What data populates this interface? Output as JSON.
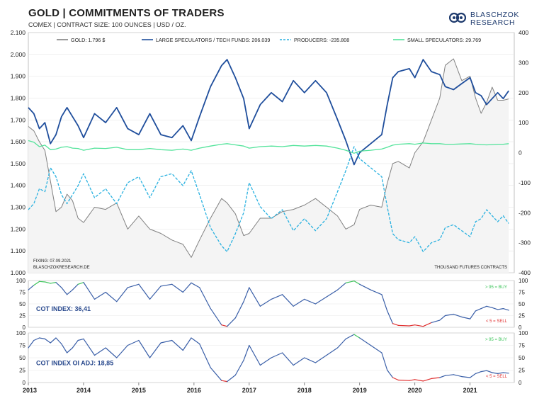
{
  "header": {
    "title": "GOLD | COMMITMENTS OF TRADERS",
    "subtitle": "COMEX | CONTRACT SIZE: 100 OUNCES | USD / OZ.",
    "logo_line1": "BLASCHZOK",
    "logo_line2": "RESEARCH"
  },
  "colors": {
    "gold": "#808080",
    "large_specs": "#1f4e9c",
    "producers": "#29b1e0",
    "small_specs": "#52e39a",
    "cot_line": "#3a5fa8",
    "buy_zone": "#3cc45a",
    "sell_zone": "#e03030"
  },
  "chart_data": [
    {
      "type": "line",
      "legend": [
        "GOLD: 1.796 $",
        "LARGE SPECULATORS / TECH FUNDS: 206.039",
        "PRODUCERS: -235.808",
        "SMALL SPECULATORS: 29.769"
      ],
      "ylim_left": [
        1000,
        2100
      ],
      "yticks_left": [
        "2.100",
        "2.000",
        "1.900",
        "1.800",
        "1.700",
        "1.600",
        "1.500",
        "1.400",
        "1.300",
        "1.200",
        "1.100",
        "1.000"
      ],
      "ylim_right": [
        -400,
        400
      ],
      "yticks_right": [
        "400",
        "300",
        "200",
        "100",
        "0",
        "-100",
        "-200",
        "-300",
        "-400"
      ],
      "xlim": [
        2013.0,
        2021.8
      ],
      "xticks": [
        "2013",
        "2014",
        "2015",
        "2016",
        "2017",
        "2018",
        "2019",
        "2020",
        "2021"
      ],
      "annotation_left": [
        "FIXING: 07.09.2021",
        "BLASCHZOKRESEARCH.DE"
      ],
      "annotation_right": "THOUSAND FUTURES CONTRACTS",
      "series": [
        {
          "name": "GOLD",
          "axis": "left",
          "x": [
            2013.0,
            2013.1,
            2013.2,
            2013.3,
            2013.4,
            2013.5,
            2013.6,
            2013.7,
            2013.8,
            2013.9,
            2014.0,
            2014.2,
            2014.4,
            2014.6,
            2014.8,
            2015.0,
            2015.2,
            2015.4,
            2015.6,
            2015.8,
            2015.95,
            2016.1,
            2016.3,
            2016.5,
            2016.6,
            2016.75,
            2016.9,
            2017.0,
            2017.2,
            2017.4,
            2017.6,
            2017.8,
            2018.0,
            2018.2,
            2018.4,
            2018.6,
            2018.75,
            2018.9,
            2019.0,
            2019.2,
            2019.4,
            2019.5,
            2019.6,
            2019.7,
            2019.9,
            2020.0,
            2020.15,
            2020.3,
            2020.45,
            2020.55,
            2020.7,
            2020.85,
            2021.0,
            2021.1,
            2021.2,
            2021.3,
            2021.4,
            2021.5,
            2021.6,
            2021.7
          ],
          "values": [
            1670,
            1650,
            1600,
            1560,
            1420,
            1280,
            1300,
            1360,
            1330,
            1250,
            1230,
            1300,
            1290,
            1320,
            1200,
            1260,
            1200,
            1180,
            1150,
            1130,
            1070,
            1150,
            1250,
            1340,
            1320,
            1270,
            1170,
            1180,
            1250,
            1250,
            1280,
            1290,
            1310,
            1340,
            1300,
            1260,
            1200,
            1220,
            1290,
            1310,
            1300,
            1410,
            1500,
            1510,
            1480,
            1550,
            1600,
            1700,
            1800,
            1950,
            1980,
            1880,
            1900,
            1800,
            1730,
            1780,
            1850,
            1790,
            1790,
            1796
          ]
        },
        {
          "name": "LARGE SPECULATORS / TECH FUNDS",
          "axis": "right",
          "x": [
            2013.0,
            2013.1,
            2013.2,
            2013.3,
            2013.4,
            2013.5,
            2013.6,
            2013.7,
            2013.8,
            2013.9,
            2014.0,
            2014.2,
            2014.4,
            2014.6,
            2014.8,
            2015.0,
            2015.2,
            2015.4,
            2015.6,
            2015.8,
            2015.95,
            2016.1,
            2016.3,
            2016.5,
            2016.6,
            2016.75,
            2016.9,
            2017.0,
            2017.2,
            2017.4,
            2017.6,
            2017.8,
            2018.0,
            2018.2,
            2018.4,
            2018.6,
            2018.75,
            2018.9,
            2019.0,
            2019.2,
            2019.4,
            2019.5,
            2019.6,
            2019.7,
            2019.9,
            2020.0,
            2020.15,
            2020.3,
            2020.45,
            2020.55,
            2020.7,
            2020.85,
            2021.0,
            2021.1,
            2021.2,
            2021.3,
            2021.4,
            2021.5,
            2021.6,
            2021.7
          ],
          "values": [
            150,
            130,
            80,
            100,
            30,
            60,
            120,
            150,
            120,
            90,
            50,
            130,
            100,
            150,
            80,
            60,
            130,
            60,
            50,
            90,
            40,
            120,
            220,
            290,
            310,
            250,
            180,
            80,
            160,
            200,
            170,
            240,
            200,
            240,
            200,
            110,
            40,
            -40,
            0,
            30,
            60,
            160,
            250,
            270,
            280,
            250,
            310,
            270,
            260,
            220,
            210,
            230,
            250,
            200,
            190,
            160,
            180,
            200,
            180,
            206
          ]
        },
        {
          "name": "PRODUCERS",
          "axis": "right",
          "x": [
            2013.0,
            2013.1,
            2013.2,
            2013.3,
            2013.4,
            2013.5,
            2013.6,
            2013.7,
            2013.8,
            2013.9,
            2014.0,
            2014.2,
            2014.4,
            2014.6,
            2014.8,
            2015.0,
            2015.2,
            2015.4,
            2015.6,
            2015.8,
            2015.95,
            2016.1,
            2016.3,
            2016.5,
            2016.6,
            2016.75,
            2016.9,
            2017.0,
            2017.2,
            2017.4,
            2017.6,
            2017.8,
            2018.0,
            2018.2,
            2018.4,
            2018.6,
            2018.75,
            2018.9,
            2019.0,
            2019.2,
            2019.4,
            2019.5,
            2019.6,
            2019.7,
            2019.9,
            2020.0,
            2020.15,
            2020.3,
            2020.45,
            2020.55,
            2020.7,
            2020.85,
            2021.0,
            2021.1,
            2021.2,
            2021.3,
            2021.4,
            2021.5,
            2021.6,
            2021.7
          ],
          "values": [
            -190,
            -170,
            -120,
            -130,
            -50,
            -80,
            -140,
            -170,
            -140,
            -110,
            -70,
            -150,
            -120,
            -170,
            -100,
            -80,
            -150,
            -80,
            -70,
            -110,
            -60,
            -140,
            -250,
            -310,
            -330,
            -270,
            -200,
            -100,
            -180,
            -220,
            -190,
            -260,
            -220,
            -260,
            -220,
            -130,
            -60,
            20,
            -20,
            -50,
            -80,
            -180,
            -270,
            -290,
            -300,
            -280,
            -330,
            -300,
            -290,
            -250,
            -240,
            -260,
            -280,
            -230,
            -220,
            -190,
            -210,
            -230,
            -210,
            -236
          ]
        },
        {
          "name": "SMALL SPECULATORS",
          "axis": "right",
          "x": [
            2013.0,
            2013.1,
            2013.2,
            2013.3,
            2013.4,
            2013.5,
            2013.6,
            2013.7,
            2013.8,
            2013.9,
            2014.0,
            2014.2,
            2014.4,
            2014.6,
            2014.8,
            2015.0,
            2015.2,
            2015.4,
            2015.6,
            2015.8,
            2015.95,
            2016.1,
            2016.3,
            2016.5,
            2016.6,
            2016.75,
            2016.9,
            2017.0,
            2017.2,
            2017.4,
            2017.6,
            2017.8,
            2018.0,
            2018.2,
            2018.4,
            2018.6,
            2018.75,
            2018.9,
            2019.0,
            2019.2,
            2019.4,
            2019.5,
            2019.6,
            2019.7,
            2019.9,
            2020.0,
            2020.15,
            2020.3,
            2020.45,
            2020.55,
            2020.7,
            2020.85,
            2021.0,
            2021.1,
            2021.2,
            2021.3,
            2021.4,
            2021.5,
            2021.6,
            2021.7
          ],
          "values": [
            40,
            35,
            20,
            25,
            10,
            12,
            18,
            20,
            15,
            14,
            8,
            15,
            14,
            18,
            10,
            10,
            14,
            10,
            8,
            12,
            8,
            15,
            22,
            28,
            30,
            26,
            22,
            15,
            20,
            22,
            20,
            24,
            22,
            24,
            22,
            15,
            8,
            -2,
            5,
            8,
            12,
            18,
            25,
            28,
            30,
            28,
            32,
            30,
            30,
            28,
            28,
            29,
            30,
            28,
            27,
            26,
            27,
            28,
            28,
            30
          ]
        }
      ]
    },
    {
      "type": "line",
      "ylim": [
        0,
        100
      ],
      "yticks": [
        "100",
        "75",
        "50",
        "25",
        "0"
      ],
      "label": "COT INDEX: 36,41",
      "buy_label": "> 95 = BUY",
      "sell_label": "< 5 = SELL",
      "series": [
        {
          "name": "COT INDEX",
          "x": [
            2013.0,
            2013.1,
            2013.2,
            2013.3,
            2013.4,
            2013.5,
            2013.6,
            2013.7,
            2013.8,
            2013.9,
            2014.0,
            2014.2,
            2014.4,
            2014.6,
            2014.8,
            2015.0,
            2015.2,
            2015.4,
            2015.6,
            2015.8,
            2015.95,
            2016.1,
            2016.3,
            2016.5,
            2016.6,
            2016.75,
            2016.9,
            2017.0,
            2017.2,
            2017.4,
            2017.6,
            2017.8,
            2018.0,
            2018.2,
            2018.4,
            2018.6,
            2018.75,
            2018.9,
            2019.0,
            2019.2,
            2019.4,
            2019.5,
            2019.6,
            2019.7,
            2019.9,
            2020.0,
            2020.15,
            2020.3,
            2020.45,
            2020.55,
            2020.7,
            2020.85,
            2021.0,
            2021.1,
            2021.2,
            2021.3,
            2021.4,
            2021.5,
            2021.6,
            2021.7
          ],
          "values": [
            80,
            90,
            98,
            97,
            94,
            96,
            85,
            70,
            80,
            92,
            96,
            60,
            75,
            55,
            85,
            92,
            60,
            88,
            92,
            75,
            95,
            85,
            40,
            5,
            2,
            20,
            55,
            85,
            45,
            60,
            70,
            45,
            60,
            50,
            65,
            80,
            95,
            99,
            92,
            80,
            70,
            35,
            8,
            4,
            3,
            5,
            2,
            10,
            15,
            25,
            28,
            22,
            18,
            35,
            40,
            45,
            42,
            38,
            40,
            36.41
          ]
        }
      ]
    },
    {
      "type": "line",
      "ylim": [
        0,
        100
      ],
      "yticks": [
        "100",
        "75",
        "50",
        "25",
        "0"
      ],
      "label": "COT INDEX OI ADJ: 18,85",
      "buy_label": "> 95 = BUY",
      "sell_label": "< 5 = SELL",
      "series": [
        {
          "name": "COT INDEX OI ADJ",
          "x": [
            2013.0,
            2013.1,
            2013.2,
            2013.3,
            2013.4,
            2013.5,
            2013.6,
            2013.7,
            2013.8,
            2013.9,
            2014.0,
            2014.2,
            2014.4,
            2014.6,
            2014.8,
            2015.0,
            2015.2,
            2015.4,
            2015.6,
            2015.8,
            2015.95,
            2016.1,
            2016.3,
            2016.5,
            2016.6,
            2016.75,
            2016.9,
            2017.0,
            2017.2,
            2017.4,
            2017.6,
            2017.8,
            2018.0,
            2018.2,
            2018.4,
            2018.6,
            2018.75,
            2018.9,
            2019.0,
            2019.2,
            2019.4,
            2019.5,
            2019.6,
            2019.7,
            2019.9,
            2020.0,
            2020.15,
            2020.3,
            2020.45,
            2020.55,
            2020.7,
            2020.85,
            2021.0,
            2021.1,
            2021.2,
            2021.3,
            2021.4,
            2021.5,
            2021.6,
            2021.7
          ],
          "values": [
            70,
            85,
            90,
            88,
            80,
            90,
            78,
            60,
            70,
            85,
            88,
            55,
            70,
            50,
            75,
            85,
            50,
            80,
            85,
            65,
            90,
            78,
            30,
            4,
            2,
            15,
            45,
            75,
            35,
            50,
            60,
            35,
            50,
            40,
            55,
            70,
            88,
            97,
            90,
            75,
            60,
            25,
            10,
            5,
            4,
            6,
            3,
            8,
            10,
            14,
            16,
            12,
            10,
            18,
            22,
            24,
            20,
            18,
            20,
            18.85
          ]
        }
      ]
    }
  ]
}
